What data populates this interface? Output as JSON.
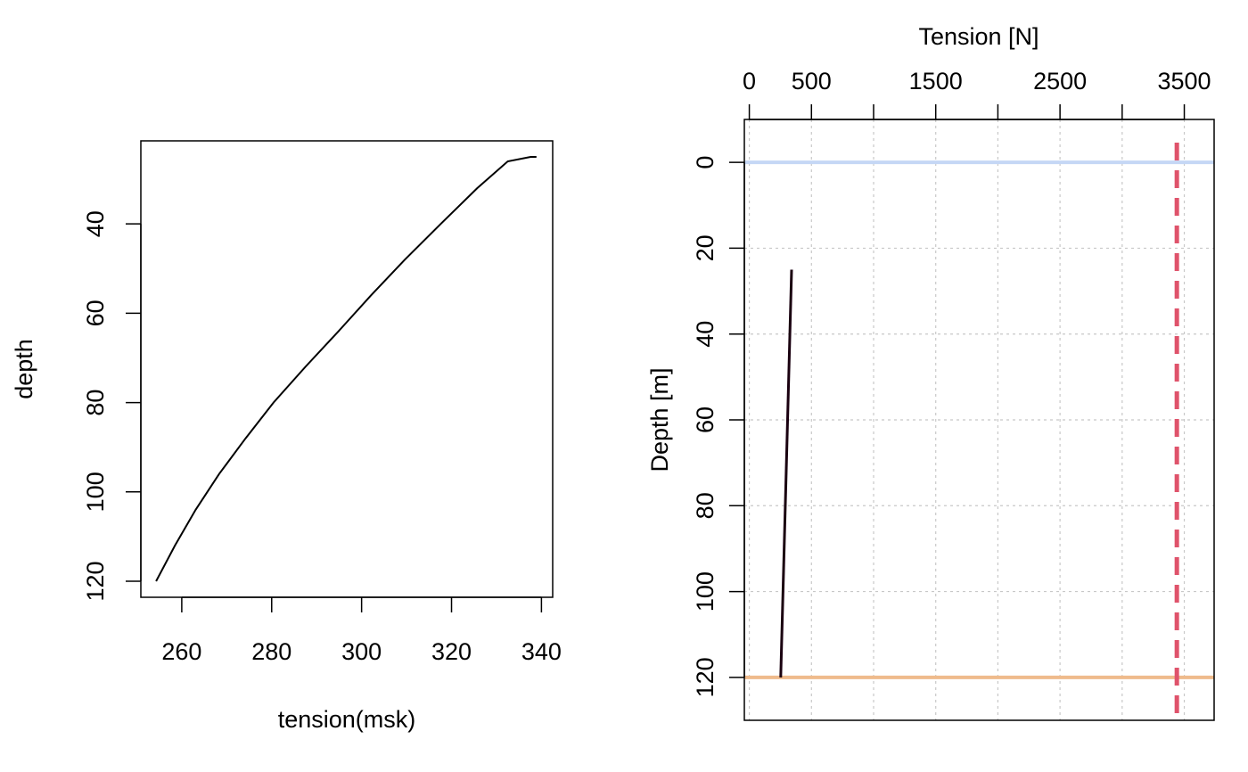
{
  "chart_data": [
    {
      "type": "line",
      "title": "",
      "xlabel": "tension(msk)",
      "ylabel": "depth",
      "xlim": [
        250.9,
        342.5
      ],
      "ylim": [
        123.6,
        21.4
      ],
      "y_inverted": true,
      "grid": false,
      "x_ticks": [
        "260",
        "280",
        "300",
        "320",
        "340"
      ],
      "y_ticks": [
        "40",
        "60",
        "80",
        "100",
        "120"
      ],
      "colors": {
        "line": "#000000",
        "frame": "#000000"
      },
      "series": [
        {
          "x": [
            254.3,
            258.5,
            263.1,
            268.3,
            274.2,
            280.4,
            287.5,
            294.9,
            302.1,
            309.6,
            317.6,
            325.7,
            332.5,
            337.6,
            338.9
          ],
          "y": [
            120,
            112,
            104,
            96,
            88,
            80,
            72,
            64,
            56,
            48,
            40,
            32,
            26,
            25,
            25
          ]
        }
      ]
    },
    {
      "type": "line",
      "title": "",
      "xlabel": "Tension [N]",
      "ylabel": "Depth [m]",
      "xaxis_position": "top",
      "xlim": [
        -40,
        3740
      ],
      "ylim": [
        130,
        -10
      ],
      "y_inverted": true,
      "grid": true,
      "x_ticks": [
        "0",
        "500",
        "1500",
        "2500",
        "3500"
      ],
      "x_tick_marks": [
        0,
        500,
        1000,
        1500,
        2000,
        2500,
        3000,
        3500
      ],
      "y_ticks": [
        "0",
        "20",
        "40",
        "60",
        "80",
        "100",
        "120"
      ],
      "colors": {
        "tension_line": "#1a0010",
        "surface_line": "#c5d7f5",
        "bottom_line": "#efbb8c",
        "limit_line": "#df536b",
        "grid": "#c8c8c8",
        "frame": "#000000"
      },
      "series": [
        {
          "x": [
            340,
            253
          ],
          "y": [
            25,
            120
          ]
        }
      ],
      "reference_lines": [
        {
          "orientation": "horizontal",
          "y": 0,
          "style": "solid"
        },
        {
          "orientation": "horizontal",
          "y": 120,
          "style": "solid"
        },
        {
          "orientation": "vertical",
          "x": 3440,
          "style": "dashed"
        }
      ]
    }
  ]
}
